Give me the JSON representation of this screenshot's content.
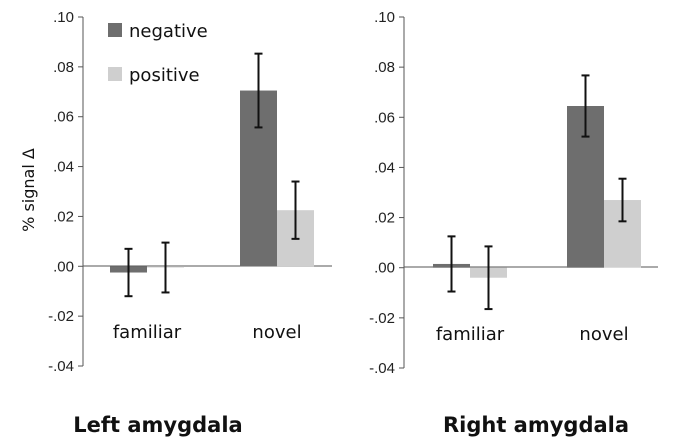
{
  "chart_data": [
    {
      "type": "bar",
      "title": "Left amygdala",
      "ylabel": "% signal Δ",
      "xlabel": "",
      "categories": [
        "familiar",
        "novel"
      ],
      "ylim": [
        -0.04,
        0.1
      ],
      "yticks": [
        ".10",
        ".08",
        ".06",
        ".04",
        ".02",
        ".00",
        "-.02",
        "-.04"
      ],
      "grid": false,
      "legend": "top-left",
      "series": [
        {
          "name": "negative",
          "color": "#6e6e6e",
          "values": [
            -0.0025,
            0.0705
          ],
          "err": [
            0.0095,
            0.0148
          ]
        },
        {
          "name": "positive",
          "color": "#cfcfcf",
          "values": [
            -0.0005,
            0.0225
          ],
          "err": [
            0.01,
            0.0115
          ]
        }
      ]
    },
    {
      "type": "bar",
      "title": "Right amygdala",
      "ylabel": "",
      "xlabel": "",
      "categories": [
        "familiar",
        "novel"
      ],
      "ylim": [
        -0.04,
        0.1
      ],
      "yticks": [
        ".10",
        ".08",
        ".06",
        ".04",
        ".02",
        ".00",
        "-.02",
        "-.04"
      ],
      "grid": false,
      "legend": "none",
      "series": [
        {
          "name": "negative",
          "color": "#6e6e6e",
          "values": [
            0.0015,
            0.0645
          ],
          "err": [
            0.011,
            0.0122
          ]
        },
        {
          "name": "positive",
          "color": "#cfcfcf",
          "values": [
            -0.004,
            0.027
          ],
          "err": [
            0.0125,
            0.0085
          ]
        }
      ]
    }
  ]
}
